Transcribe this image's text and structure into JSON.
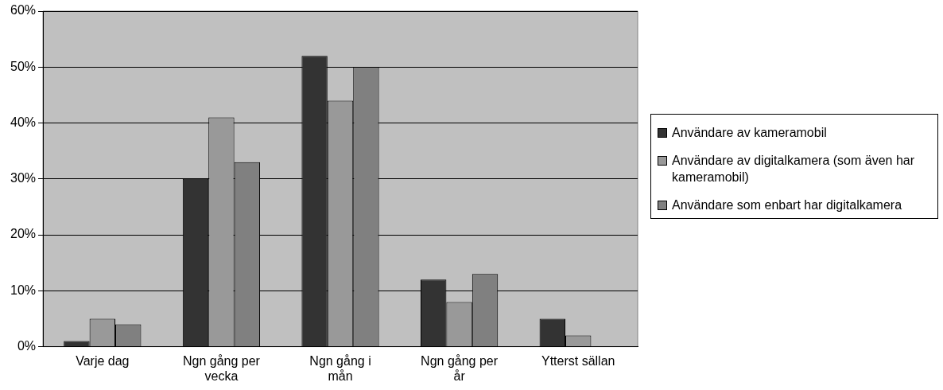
{
  "chart_data": {
    "type": "bar",
    "categories": [
      "Varje dag",
      "Ngn gång per vecka",
      "Ngn gång i mån",
      "Ngn gång per år",
      "Ytterst sällan"
    ],
    "series": [
      {
        "name": "Användare av kameramobil",
        "color": "#333333",
        "values": [
          1,
          30,
          52,
          12,
          5
        ]
      },
      {
        "name": "Användare av digitalkamera (som även har kameramobil)",
        "color": "#999999",
        "values": [
          5,
          41,
          44,
          8,
          2
        ]
      },
      {
        "name": "Användare som enbart har digitalkamera",
        "color": "#808080",
        "values": [
          4,
          33,
          50,
          13,
          null
        ]
      }
    ],
    "ylim": [
      0,
      60
    ],
    "yticks": [
      {
        "value": 0,
        "label": "0%"
      },
      {
        "value": 10,
        "label": "10%"
      },
      {
        "value": 20,
        "label": "20%"
      },
      {
        "value": 30,
        "label": "30%"
      },
      {
        "value": 40,
        "label": "40%"
      },
      {
        "value": 50,
        "label": "50%"
      },
      {
        "value": 60,
        "label": "60%"
      }
    ],
    "grid": "y",
    "legend": "right"
  }
}
